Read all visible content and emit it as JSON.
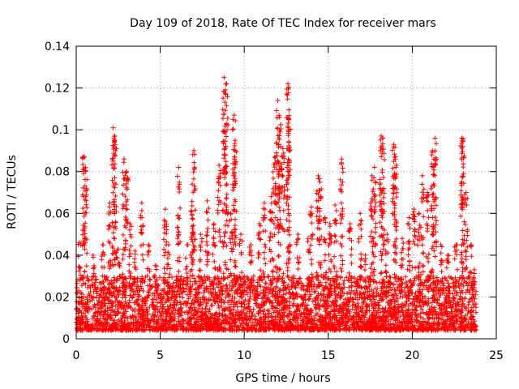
{
  "chart_data": {
    "type": "scatter",
    "title": "Day 109 of 2018, Rate Of TEC Index for receiver mars",
    "xlabel": "GPS time / hours",
    "ylabel": "ROTI / TECUs",
    "xlim": [
      0,
      25
    ],
    "ylim": [
      0,
      0.14
    ],
    "xticks": [
      0,
      5,
      10,
      15,
      20,
      25
    ],
    "xtick_labels": [
      "0",
      "5",
      "10",
      "15",
      "20",
      "25"
    ],
    "yticks": [
      0,
      0.02,
      0.04,
      0.06,
      0.08,
      0.1,
      0.12,
      0.14
    ],
    "ytick_labels": [
      "0",
      "0.02",
      "0.04",
      "0.06",
      "0.08",
      "0.1",
      "0.12",
      "0.14"
    ],
    "grid": true,
    "marker": "+",
    "color": "#ff0000",
    "series": [
      {
        "name": "ROTI",
        "baseline": {
          "x_range": [
            0,
            23.8
          ],
          "y_range": [
            0.004,
            0.03
          ],
          "approx_points": 4000
        },
        "spikes": [
          {
            "x": 0.2,
            "y": 0.046
          },
          {
            "x": 0.45,
            "y": 0.087
          },
          {
            "x": 0.55,
            "y": 0.082
          },
          {
            "x": 1.0,
            "y": 0.04
          },
          {
            "x": 1.6,
            "y": 0.045
          },
          {
            "x": 2.0,
            "y": 0.065
          },
          {
            "x": 2.2,
            "y": 0.101
          },
          {
            "x": 2.3,
            "y": 0.097
          },
          {
            "x": 2.5,
            "y": 0.043
          },
          {
            "x": 2.85,
            "y": 0.086
          },
          {
            "x": 3.0,
            "y": 0.08
          },
          {
            "x": 3.2,
            "y": 0.055
          },
          {
            "x": 3.5,
            "y": 0.042
          },
          {
            "x": 3.9,
            "y": 0.065
          },
          {
            "x": 4.3,
            "y": 0.045
          },
          {
            "x": 4.7,
            "y": 0.035
          },
          {
            "x": 5.3,
            "y": 0.062
          },
          {
            "x": 5.5,
            "y": 0.045
          },
          {
            "x": 6.1,
            "y": 0.082
          },
          {
            "x": 6.6,
            "y": 0.045
          },
          {
            "x": 6.9,
            "y": 0.074
          },
          {
            "x": 7.0,
            "y": 0.09
          },
          {
            "x": 7.4,
            "y": 0.05
          },
          {
            "x": 7.8,
            "y": 0.066
          },
          {
            "x": 8.2,
            "y": 0.055
          },
          {
            "x": 8.5,
            "y": 0.083
          },
          {
            "x": 8.8,
            "y": 0.125
          },
          {
            "x": 8.95,
            "y": 0.122
          },
          {
            "x": 9.2,
            "y": 0.06
          },
          {
            "x": 9.4,
            "y": 0.107
          },
          {
            "x": 9.45,
            "y": 0.09
          },
          {
            "x": 9.8,
            "y": 0.05
          },
          {
            "x": 10.4,
            "y": 0.045
          },
          {
            "x": 10.9,
            "y": 0.055
          },
          {
            "x": 11.2,
            "y": 0.065
          },
          {
            "x": 11.6,
            "y": 0.068
          },
          {
            "x": 11.8,
            "y": 0.087
          },
          {
            "x": 12.0,
            "y": 0.114
          },
          {
            "x": 12.1,
            "y": 0.106
          },
          {
            "x": 12.3,
            "y": 0.091
          },
          {
            "x": 12.6,
            "y": 0.122
          },
          {
            "x": 12.65,
            "y": 0.105
          },
          {
            "x": 13.2,
            "y": 0.05
          },
          {
            "x": 13.8,
            "y": 0.048
          },
          {
            "x": 14.0,
            "y": 0.063
          },
          {
            "x": 14.4,
            "y": 0.078
          },
          {
            "x": 14.5,
            "y": 0.075
          },
          {
            "x": 14.8,
            "y": 0.058
          },
          {
            "x": 15.1,
            "y": 0.055
          },
          {
            "x": 15.4,
            "y": 0.064
          },
          {
            "x": 15.8,
            "y": 0.086
          },
          {
            "x": 16.3,
            "y": 0.055
          },
          {
            "x": 16.9,
            "y": 0.06
          },
          {
            "x": 17.2,
            "y": 0.04
          },
          {
            "x": 17.6,
            "y": 0.078
          },
          {
            "x": 17.75,
            "y": 0.082
          },
          {
            "x": 18.15,
            "y": 0.097
          },
          {
            "x": 18.25,
            "y": 0.096
          },
          {
            "x": 18.5,
            "y": 0.05
          },
          {
            "x": 18.9,
            "y": 0.093
          },
          {
            "x": 19.0,
            "y": 0.087
          },
          {
            "x": 19.4,
            "y": 0.048
          },
          {
            "x": 19.8,
            "y": 0.058
          },
          {
            "x": 20.1,
            "y": 0.062
          },
          {
            "x": 20.4,
            "y": 0.06
          },
          {
            "x": 20.6,
            "y": 0.078
          },
          {
            "x": 20.9,
            "y": 0.07
          },
          {
            "x": 21.2,
            "y": 0.09
          },
          {
            "x": 21.35,
            "y": 0.096
          },
          {
            "x": 21.7,
            "y": 0.045
          },
          {
            "x": 22.1,
            "y": 0.04
          },
          {
            "x": 22.6,
            "y": 0.045
          },
          {
            "x": 22.95,
            "y": 0.096
          },
          {
            "x": 23.0,
            "y": 0.092
          },
          {
            "x": 23.2,
            "y": 0.07
          },
          {
            "x": 23.5,
            "y": 0.045
          },
          {
            "x": 23.7,
            "y": 0.033
          }
        ]
      }
    ]
  }
}
